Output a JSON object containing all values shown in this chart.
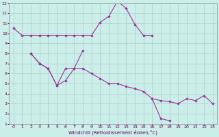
{
  "xlabel": "Windchill (Refroidissement éolien,°C)",
  "bg_color": "#cceee8",
  "grid_color": "#aacccc",
  "line_color": "#993399",
  "xlim_min": -0.5,
  "xlim_max": 23.5,
  "ylim_min": 1,
  "ylim_max": 13,
  "lines": [
    {
      "x": [
        0,
        1,
        2,
        3,
        4,
        5,
        6,
        7,
        8,
        9,
        10,
        11,
        12,
        13,
        14,
        15,
        16
      ],
      "y": [
        10.5,
        9.8,
        9.8,
        9.8,
        9.8,
        9.8,
        9.8,
        9.8,
        9.8,
        9.8,
        11.1,
        11.7,
        13.2,
        12.5,
        10.9,
        9.8,
        9.8
      ]
    },
    {
      "x": [
        2,
        3,
        4,
        5,
        6,
        7,
        8
      ],
      "y": [
        8.0,
        7.0,
        6.5,
        4.8,
        6.5,
        6.5,
        8.3
      ]
    },
    {
      "x": [
        2,
        3,
        4,
        5,
        6,
        7,
        8,
        9,
        10,
        11,
        12,
        13,
        14,
        15,
        16,
        17,
        18,
        19,
        20,
        21,
        22,
        23
      ],
      "y": [
        8.0,
        7.0,
        6.5,
        4.8,
        5.3,
        6.5,
        6.5,
        6.0,
        5.5,
        5.0,
        5.0,
        4.7,
        4.5,
        4.2,
        3.5,
        3.3,
        3.2,
        3.0,
        3.5,
        3.3,
        3.8,
        3.0
      ]
    },
    {
      "x": [
        16,
        17,
        18
      ],
      "y": [
        3.5,
        1.5,
        1.3
      ]
    }
  ],
  "marker_size": 2,
  "line_width": 0.8,
  "tick_fontsize": 4.5,
  "xlabel_fontsize": 5
}
